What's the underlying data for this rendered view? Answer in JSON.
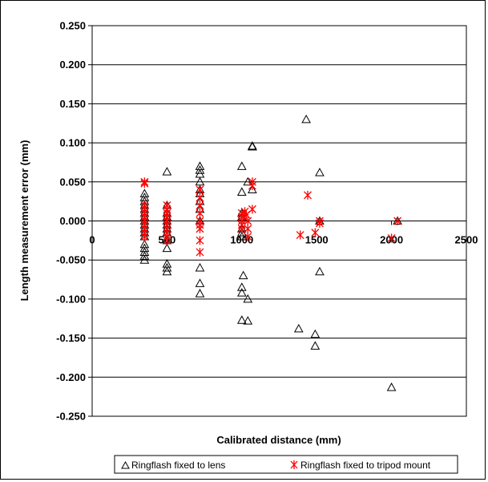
{
  "chart_data": {
    "type": "scatter",
    "title": "",
    "xlabel": "Calibrated distance (mm)",
    "ylabel": "Length measurement error (mm)",
    "xlim": [
      0,
      2500
    ],
    "ylim": [
      -0.25,
      0.25
    ],
    "x_ticks": [
      0,
      500,
      1000,
      1500,
      2000,
      2500
    ],
    "y_ticks": [
      0.25,
      0.2,
      0.15,
      0.1,
      0.05,
      0.0,
      -0.05,
      -0.1,
      -0.15,
      -0.2,
      -0.25
    ],
    "y_tick_labels": [
      "0.250",
      "0.200",
      "0.150",
      "0.100",
      "0.050",
      "0.000",
      "-0.050",
      "-0.100",
      "-0.150",
      "-0.200",
      "-0.250"
    ],
    "x_tick_labels": [
      "0",
      "500",
      "1000",
      "1500",
      "2000",
      "2500"
    ],
    "grid": "horizontal",
    "legend": "bottom",
    "series": [
      {
        "name": "Ringflash fixed to lens",
        "marker": "triangle",
        "color": "#000000",
        "points": [
          [
            350,
            0.035
          ],
          [
            350,
            0.03
          ],
          [
            350,
            0.025
          ],
          [
            350,
            0.02
          ],
          [
            350,
            0.015
          ],
          [
            350,
            0.01
          ],
          [
            350,
            0.005
          ],
          [
            350,
            0.0
          ],
          [
            350,
            -0.005
          ],
          [
            350,
            -0.01
          ],
          [
            350,
            -0.015
          ],
          [
            350,
            -0.02
          ],
          [
            350,
            -0.03
          ],
          [
            350,
            -0.035
          ],
          [
            350,
            -0.04
          ],
          [
            350,
            -0.045
          ],
          [
            350,
            -0.05
          ],
          [
            500,
            0.063
          ],
          [
            500,
            0.02
          ],
          [
            500,
            0.01
          ],
          [
            500,
            0.005
          ],
          [
            500,
            0.0
          ],
          [
            500,
            -0.005
          ],
          [
            500,
            -0.01
          ],
          [
            500,
            -0.015
          ],
          [
            500,
            -0.025
          ],
          [
            500,
            -0.035
          ],
          [
            500,
            -0.055
          ],
          [
            500,
            -0.06
          ],
          [
            500,
            -0.065
          ],
          [
            720,
            0.07
          ],
          [
            720,
            0.065
          ],
          [
            720,
            0.06
          ],
          [
            720,
            0.05
          ],
          [
            720,
            0.04
          ],
          [
            720,
            0.035
          ],
          [
            720,
            0.025
          ],
          [
            720,
            0.015
          ],
          [
            720,
            0.0
          ],
          [
            720,
            -0.06
          ],
          [
            720,
            -0.08
          ],
          [
            720,
            -0.093
          ],
          [
            1000,
            0.07
          ],
          [
            1000,
            0.037
          ],
          [
            1000,
            0.01
          ],
          [
            1000,
            0.005
          ],
          [
            1000,
            -0.01
          ],
          [
            1000,
            -0.015
          ],
          [
            1000,
            -0.02
          ],
          [
            1000,
            -0.085
          ],
          [
            1000,
            -0.092
          ],
          [
            1000,
            -0.127
          ],
          [
            1010,
            -0.07
          ],
          [
            1040,
            0.05
          ],
          [
            1040,
            -0.1
          ],
          [
            1040,
            -0.128
          ],
          [
            1070,
            0.096
          ],
          [
            1070,
            0.095
          ],
          [
            1070,
            0.04
          ],
          [
            1430,
            0.13
          ],
          [
            1380,
            -0.138
          ],
          [
            1490,
            -0.145
          ],
          [
            1490,
            -0.16
          ],
          [
            1520,
            0.062
          ],
          [
            1520,
            0.0
          ],
          [
            1520,
            -0.065
          ],
          [
            2000,
            -0.213
          ],
          [
            2040,
            0.0
          ]
        ]
      },
      {
        "name": "Ringflash fixed to tripod mount",
        "marker": "asterisk",
        "color": "#ff0000",
        "points": [
          [
            350,
            0.05
          ],
          [
            350,
            0.048
          ],
          [
            350,
            0.02
          ],
          [
            350,
            0.015
          ],
          [
            350,
            0.01
          ],
          [
            350,
            0.005
          ],
          [
            350,
            0.0
          ],
          [
            350,
            -0.005
          ],
          [
            350,
            -0.01
          ],
          [
            350,
            -0.015
          ],
          [
            350,
            -0.02
          ],
          [
            500,
            0.02
          ],
          [
            500,
            0.015
          ],
          [
            500,
            0.01
          ],
          [
            500,
            0.005
          ],
          [
            500,
            0.0
          ],
          [
            500,
            -0.005
          ],
          [
            500,
            -0.01
          ],
          [
            500,
            -0.015
          ],
          [
            500,
            -0.02
          ],
          [
            500,
            -0.025
          ],
          [
            720,
            0.04
          ],
          [
            720,
            0.03
          ],
          [
            720,
            0.02
          ],
          [
            720,
            0.01
          ],
          [
            720,
            0.0
          ],
          [
            720,
            -0.005
          ],
          [
            720,
            -0.01
          ],
          [
            720,
            -0.025
          ],
          [
            720,
            -0.04
          ],
          [
            1000,
            0.01
          ],
          [
            1000,
            0.005
          ],
          [
            1000,
            0.0
          ],
          [
            1000,
            -0.005
          ],
          [
            1000,
            -0.01
          ],
          [
            1020,
            0.012
          ],
          [
            1030,
            0.008
          ],
          [
            1040,
            0.0
          ],
          [
            1040,
            -0.01
          ],
          [
            1040,
            -0.02
          ],
          [
            1070,
            0.05
          ],
          [
            1070,
            0.045
          ],
          [
            1070,
            0.015
          ],
          [
            1390,
            -0.018
          ],
          [
            1440,
            0.033
          ],
          [
            1490,
            -0.015
          ],
          [
            1520,
            0.0
          ],
          [
            1520,
            -0.003
          ],
          [
            2000,
            -0.022
          ],
          [
            2040,
            0.0
          ]
        ]
      }
    ]
  }
}
